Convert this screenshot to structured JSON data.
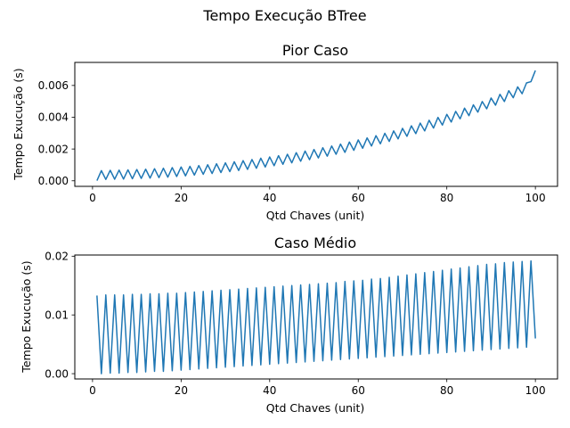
{
  "figure": {
    "suptitle": "Tempo Execução BTree"
  },
  "colors": {
    "series": "#1f77b4",
    "axes": "#000000",
    "background": "#ffffff"
  },
  "chart_data": [
    {
      "type": "line",
      "title": "Pior Caso",
      "xlabel": "Qtd Chaves (unit)",
      "ylabel": "Tempo Exucução (s)",
      "xlim": [
        -4,
        105
      ],
      "ylim": [
        -0.00035,
        0.00745
      ],
      "xticks": [
        0,
        20,
        40,
        60,
        80,
        100
      ],
      "xtick_labels": [
        "0",
        "20",
        "40",
        "60",
        "80",
        "100"
      ],
      "yticks": [
        0,
        0.002,
        0.004,
        0.006
      ],
      "ytick_labels": [
        "0.000",
        "0.002",
        "0.004",
        "0.006"
      ],
      "grid": false,
      "legend": "none",
      "series": [
        {
          "x": [
            1,
            2,
            3,
            4,
            5,
            6,
            7,
            8,
            9,
            10,
            11,
            12,
            13,
            14,
            15,
            16,
            17,
            18,
            19,
            20,
            21,
            22,
            23,
            24,
            25,
            26,
            27,
            28,
            29,
            30,
            31,
            32,
            33,
            34,
            35,
            36,
            37,
            38,
            39,
            40,
            41,
            42,
            43,
            44,
            45,
            46,
            47,
            48,
            49,
            50,
            51,
            52,
            53,
            54,
            55,
            56,
            57,
            58,
            59,
            60,
            61,
            62,
            63,
            64,
            65,
            66,
            67,
            68,
            69,
            70,
            71,
            72,
            73,
            74,
            75,
            76,
            77,
            78,
            79,
            80,
            81,
            82,
            83,
            84,
            85,
            86,
            87,
            88,
            89,
            90,
            91,
            92,
            93,
            94,
            95,
            96,
            97,
            98,
            99,
            100
          ],
          "y": [
            1e-05,
            0.00064,
            9e-05,
            0.00066,
            0.0001,
            0.00067,
            0.00011,
            0.00069,
            0.00013,
            0.00071,
            0.00015,
            0.00073,
            0.00017,
            0.00076,
            0.0002,
            0.00079,
            0.00023,
            0.00083,
            0.00027,
            0.00087,
            0.00031,
            0.00091,
            0.00036,
            0.00096,
            0.00041,
            0.00101,
            0.00046,
            0.00107,
            0.00052,
            0.00113,
            0.00058,
            0.0012,
            0.00065,
            0.00127,
            0.00072,
            0.00134,
            0.00079,
            0.00142,
            0.00087,
            0.0015,
            0.00095,
            0.00158,
            0.00104,
            0.00167,
            0.00113,
            0.00177,
            0.00123,
            0.00187,
            0.00133,
            0.00197,
            0.00144,
            0.00208,
            0.00155,
            0.00219,
            0.00167,
            0.00231,
            0.00179,
            0.00244,
            0.00192,
            0.00257,
            0.00205,
            0.0027,
            0.00219,
            0.00284,
            0.00233,
            0.00299,
            0.00248,
            0.00314,
            0.00264,
            0.0033,
            0.0028,
            0.00346,
            0.00297,
            0.00363,
            0.00314,
            0.00381,
            0.00332,
            0.00399,
            0.00351,
            0.00418,
            0.0037,
            0.00437,
            0.0039,
            0.00457,
            0.0041,
            0.00478,
            0.00432,
            0.00499,
            0.00453,
            0.00521,
            0.00476,
            0.00544,
            0.00499,
            0.00567,
            0.00523,
            0.00591,
            0.00548,
            0.00616,
            0.00624,
            0.00694
          ]
        }
      ]
    },
    {
      "type": "line",
      "title": "Caso Médio",
      "xlabel": "Qtd Chaves (unit)",
      "ylabel": "Tempo Exucução (s)",
      "xlim": [
        -4,
        105
      ],
      "ylim": [
        -0.0009,
        0.0202
      ],
      "xticks": [
        0,
        20,
        40,
        60,
        80,
        100
      ],
      "xtick_labels": [
        "0",
        "20",
        "40",
        "60",
        "80",
        "100"
      ],
      "yticks": [
        0,
        0.01,
        0.02
      ],
      "ytick_labels": [
        "0.00",
        "0.01",
        "0.02"
      ],
      "grid": false,
      "legend": "none",
      "series": [
        {
          "x": [
            1,
            2,
            3,
            4,
            5,
            6,
            7,
            8,
            9,
            10,
            11,
            12,
            13,
            14,
            15,
            16,
            17,
            18,
            19,
            20,
            21,
            22,
            23,
            24,
            25,
            26,
            27,
            28,
            29,
            30,
            31,
            32,
            33,
            34,
            35,
            36,
            37,
            38,
            39,
            40,
            41,
            42,
            43,
            44,
            45,
            46,
            47,
            48,
            49,
            50,
            51,
            52,
            53,
            54,
            55,
            56,
            57,
            58,
            59,
            60,
            61,
            62,
            63,
            64,
            65,
            66,
            67,
            68,
            69,
            70,
            71,
            72,
            73,
            74,
            75,
            76,
            77,
            78,
            79,
            80,
            81,
            82,
            83,
            84,
            85,
            86,
            87,
            88,
            89,
            90,
            91,
            92,
            93,
            94,
            95,
            96,
            97,
            98,
            99,
            100
          ],
          "y": [
            0.0133,
            0.0,
            0.0134,
            0.0001,
            0.0134,
            0.0001,
            0.0134,
            0.0002,
            0.0135,
            0.0002,
            0.0135,
            0.0003,
            0.0136,
            0.0004,
            0.0136,
            0.0004,
            0.0137,
            0.0005,
            0.0137,
            0.0006,
            0.0138,
            0.0007,
            0.0139,
            0.0008,
            0.014,
            0.0009,
            0.0141,
            0.001,
            0.0142,
            0.0011,
            0.0143,
            0.0012,
            0.0144,
            0.0013,
            0.0145,
            0.0014,
            0.0146,
            0.0015,
            0.0147,
            0.0016,
            0.0148,
            0.0017,
            0.0149,
            0.0018,
            0.015,
            0.0019,
            0.0151,
            0.002,
            0.0152,
            0.0021,
            0.0153,
            0.0022,
            0.0154,
            0.0023,
            0.0155,
            0.0024,
            0.0157,
            0.0025,
            0.0158,
            0.0026,
            0.0159,
            0.0027,
            0.0161,
            0.0028,
            0.0162,
            0.0029,
            0.0164,
            0.003,
            0.0166,
            0.0031,
            0.0168,
            0.0032,
            0.017,
            0.0033,
            0.0172,
            0.0034,
            0.0174,
            0.0035,
            0.0176,
            0.0036,
            0.0178,
            0.0037,
            0.018,
            0.0038,
            0.0182,
            0.0039,
            0.0184,
            0.004,
            0.0186,
            0.0041,
            0.0187,
            0.0042,
            0.0189,
            0.0043,
            0.019,
            0.0044,
            0.0191,
            0.0045,
            0.0192,
            0.006
          ]
        }
      ]
    }
  ]
}
